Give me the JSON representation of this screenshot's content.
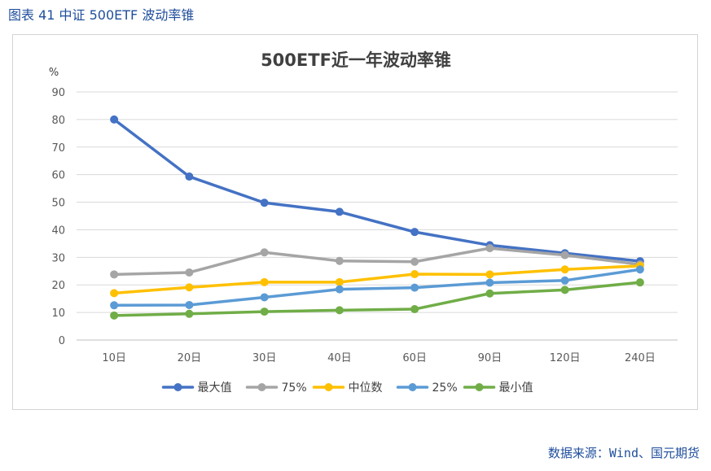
{
  "caption": "图表 41  中证 500ETF 波动率锥",
  "source": "数据来源：Wind、国元期货",
  "chart_data": {
    "type": "line",
    "title": "500ETF近一年波动率锥",
    "ylabel": "%",
    "xlabel": "",
    "ylim": [
      0,
      90
    ],
    "yticks": [
      0,
      10,
      20,
      30,
      40,
      50,
      60,
      70,
      80,
      90
    ],
    "categories": [
      "10日",
      "20日",
      "30日",
      "40日",
      "60日",
      "90日",
      "120日",
      "240日"
    ],
    "series": [
      {
        "name": "最大值",
        "color": "#4472c4",
        "values": [
          80.0,
          59.3,
          49.8,
          46.5,
          39.2,
          34.4,
          31.5,
          28.6
        ]
      },
      {
        "name": "75%",
        "color": "#a5a5a5",
        "values": [
          23.8,
          24.5,
          31.8,
          28.7,
          28.4,
          33.3,
          30.8,
          27.4
        ]
      },
      {
        "name": "中位数",
        "color": "#ffc000",
        "values": [
          17.0,
          19.1,
          21.0,
          21.0,
          23.9,
          23.8,
          25.6,
          26.9
        ]
      },
      {
        "name": "25%",
        "color": "#5b9bd5",
        "values": [
          12.6,
          12.7,
          15.5,
          18.4,
          19.0,
          20.8,
          21.6,
          25.6
        ]
      },
      {
        "name": "最小值",
        "color": "#70ad47",
        "values": [
          8.9,
          9.5,
          10.3,
          10.8,
          11.2,
          16.9,
          18.2,
          20.9
        ]
      }
    ],
    "legend_position": "bottom",
    "grid": true
  }
}
